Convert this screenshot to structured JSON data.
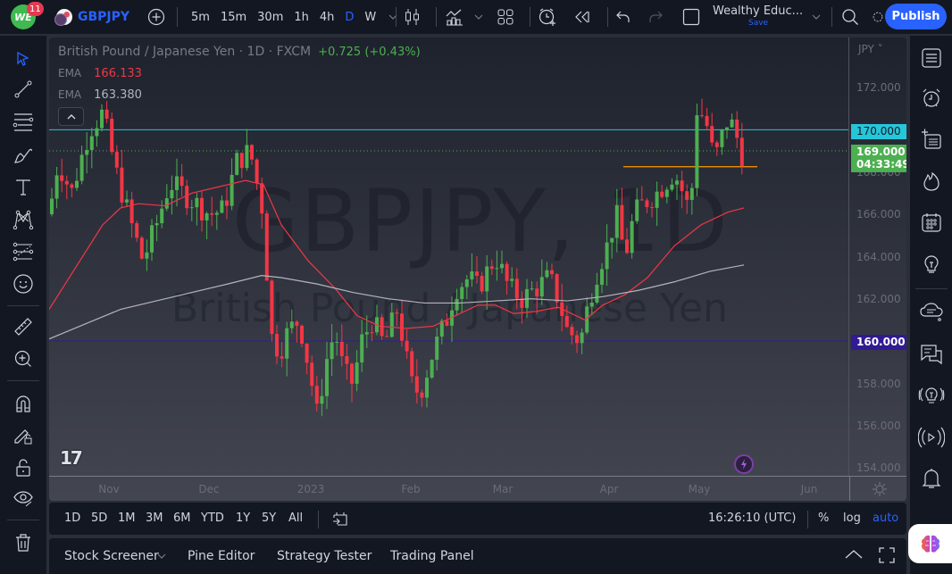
{
  "topbar": {
    "notification_count": "11",
    "logo_text": "WE",
    "symbol": "GBPJPY",
    "intervals": [
      {
        "label": "5m",
        "active": false
      },
      {
        "label": "15m",
        "active": false
      },
      {
        "label": "30m",
        "active": false
      },
      {
        "label": "1h",
        "active": false
      },
      {
        "label": "4h",
        "active": false
      },
      {
        "label": "D",
        "active": true
      },
      {
        "label": "W",
        "active": false
      }
    ],
    "layout_name": "Wealthy Educ...",
    "layout_save": "Save",
    "publish_label": "Publish",
    "icons": [
      "add-symbol-icon",
      "chevron-down-icon",
      "candles-icon",
      "indicators-icon",
      "layouts-icon",
      "alert-icon",
      "replay-icon",
      "undo-icon",
      "redo-icon",
      "fullscreen-square-icon",
      "search-icon",
      "settings-icon"
    ]
  },
  "legend": {
    "title": "British Pound / Japanese Yen · 1D · FXCM",
    "change": "+0.725 (+0.43%)",
    "emas": [
      {
        "label": "EMA",
        "value": "166.133",
        "color": "#f23645"
      },
      {
        "label": "EMA",
        "value": "163.380",
        "color": "#b2b5be"
      }
    ]
  },
  "watermark": {
    "symbol": "GBPJPY, 1D",
    "name": "British Pound / Japanese Yen"
  },
  "price_axis": {
    "currency": "JPY",
    "ticks": [
      "172.000",
      "170.000",
      "168.000",
      "166.000",
      "164.000",
      "162.000",
      "160.000",
      "158.000",
      "156.000",
      "154.000"
    ],
    "tags": {
      "resistance": {
        "value": "170.000",
        "color": "#26c6da"
      },
      "last_price": {
        "value": "169.000",
        "countdown": "04:33:49",
        "color": "#4caf50"
      },
      "support": {
        "value": "160.000",
        "color": "#311b92"
      }
    }
  },
  "time_axis": {
    "labels": [
      "Nov",
      "Dec",
      "2023",
      "Feb",
      "Mar",
      "Apr",
      "May",
      "Jun"
    ]
  },
  "range_bar": {
    "ranges": [
      "1D",
      "5D",
      "1M",
      "3M",
      "6M",
      "YTD",
      "1Y",
      "5Y",
      "All"
    ],
    "clock": "16:26:10 (UTC)",
    "percent": "%",
    "log": "log",
    "auto": "auto"
  },
  "bottom_panel": {
    "tabs": [
      "Stock Screener",
      "Pine Editor",
      "Strategy Tester",
      "Trading Panel"
    ]
  },
  "left_toolbar": [
    "cursor-icon",
    "trend-line-icon",
    "fib-retracement-icon",
    "brush-icon",
    "text-icon",
    "pattern-icon",
    "prediction-icon",
    "emoji-icon",
    "ruler-icon",
    "zoom-in-icon",
    "magnet-icon",
    "lock-drawing-icon",
    "lock-icon",
    "eye-icon",
    "trash-icon"
  ],
  "right_toolbar": [
    "watchlist-icon",
    "alarm-icon",
    "add-list-icon",
    "hotlist-icon",
    "calendar-icon",
    "ideas-icon",
    "chat-cloud-icon",
    "messages-icon",
    "streams-icon",
    "broadcast-icon",
    "bell-icon"
  ],
  "colors": {
    "up": "#4caf50",
    "down": "#f23645",
    "accent": "#2962ff",
    "ema_fast": "#f23645",
    "ema_slow": "#b2b5be",
    "resistance": "#26c6da",
    "support_line": "#311b92",
    "orange_line": "#ff9800"
  }
}
